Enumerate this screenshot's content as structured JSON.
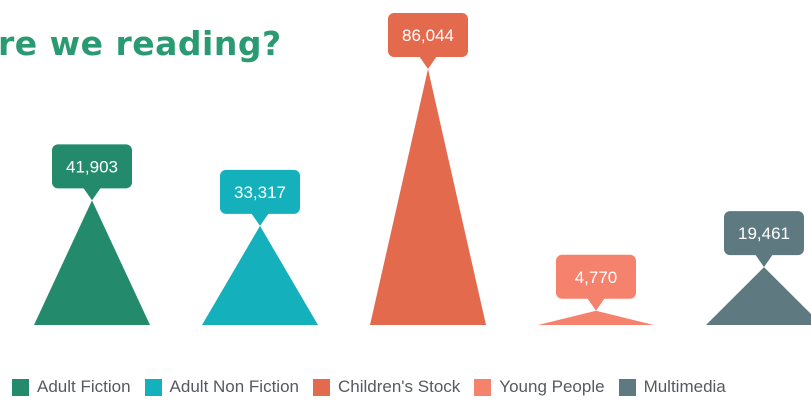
{
  "chart_data": {
    "type": "bar",
    "title": "re we reading?",
    "categories": [
      "Adult Fiction",
      "Adult Non Fiction",
      "Children's Stock",
      "Young People",
      "Multimedia"
    ],
    "values": [
      41903,
      33317,
      86044,
      4770,
      19461
    ],
    "value_labels": [
      "41,903",
      "33,317",
      "86,044",
      "4,770",
      "19,461"
    ],
    "colors": [
      "#238b6b",
      "#14b1bc",
      "#e46a4e",
      "#f5826d",
      "#5e7a80"
    ],
    "grid": false,
    "legend_position": "bottom",
    "ylim": [
      0,
      86044
    ]
  }
}
